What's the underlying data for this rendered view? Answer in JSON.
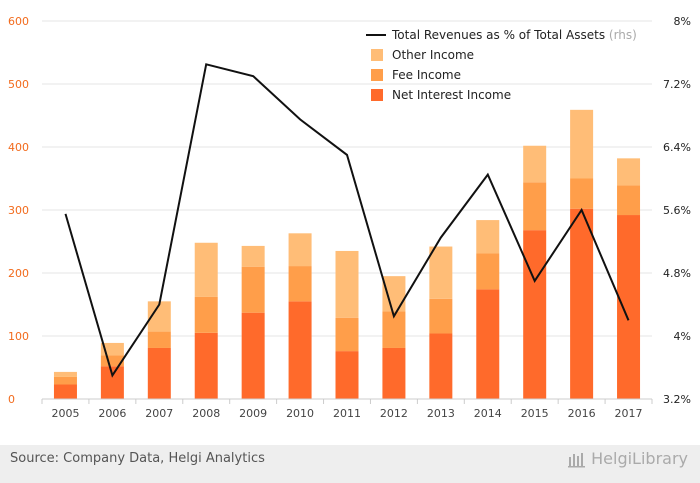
{
  "chart_data": {
    "type": "bar",
    "stacked": true,
    "categories": [
      "2005",
      "2006",
      "2007",
      "2008",
      "2009",
      "2010",
      "2011",
      "2012",
      "2013",
      "2014",
      "2015",
      "2016",
      "2017"
    ],
    "series": [
      {
        "name": "Net Interest Income",
        "color": "#ff6a2b",
        "values": [
          23,
          52,
          81,
          105,
          137,
          155,
          76,
          81,
          104,
          174,
          268,
          302,
          292
        ]
      },
      {
        "name": "Fee Income",
        "color": "#ff9e4a",
        "values": [
          12,
          17,
          26,
          57,
          73,
          56,
          53,
          58,
          55,
          57,
          76,
          48,
          47
        ]
      },
      {
        "name": "Other Income",
        "color": "#ffbd77",
        "values": [
          8,
          20,
          48,
          86,
          33,
          52,
          106,
          56,
          83,
          53,
          58,
          109,
          43
        ]
      }
    ],
    "line_series": {
      "name": "Total Revenues as % of Total Assets",
      "suffix": "(rhs)",
      "color": "#111111",
      "values": [
        5.55,
        3.5,
        4.4,
        7.45,
        7.3,
        6.75,
        6.3,
        4.25,
        5.25,
        6.05,
        4.7,
        5.6,
        4.2
      ]
    },
    "yleft": {
      "min": 0,
      "max": 600,
      "ticks": [
        0,
        100,
        200,
        300,
        400,
        500,
        600
      ]
    },
    "yright": {
      "min": 3.2,
      "max": 8.0,
      "ticks": [
        "3.2%",
        "4%",
        "4.8%",
        "5.6%",
        "6.4%",
        "7.2%",
        "8%"
      ],
      "tick_values": [
        3.2,
        4.0,
        4.8,
        5.6,
        6.4,
        7.2,
        8.0
      ]
    },
    "legend_position": "top-right",
    "grid": true
  },
  "footer": {
    "source": "Source: Company Data, Helgi Analytics",
    "brand": "HelgiLibrary"
  }
}
